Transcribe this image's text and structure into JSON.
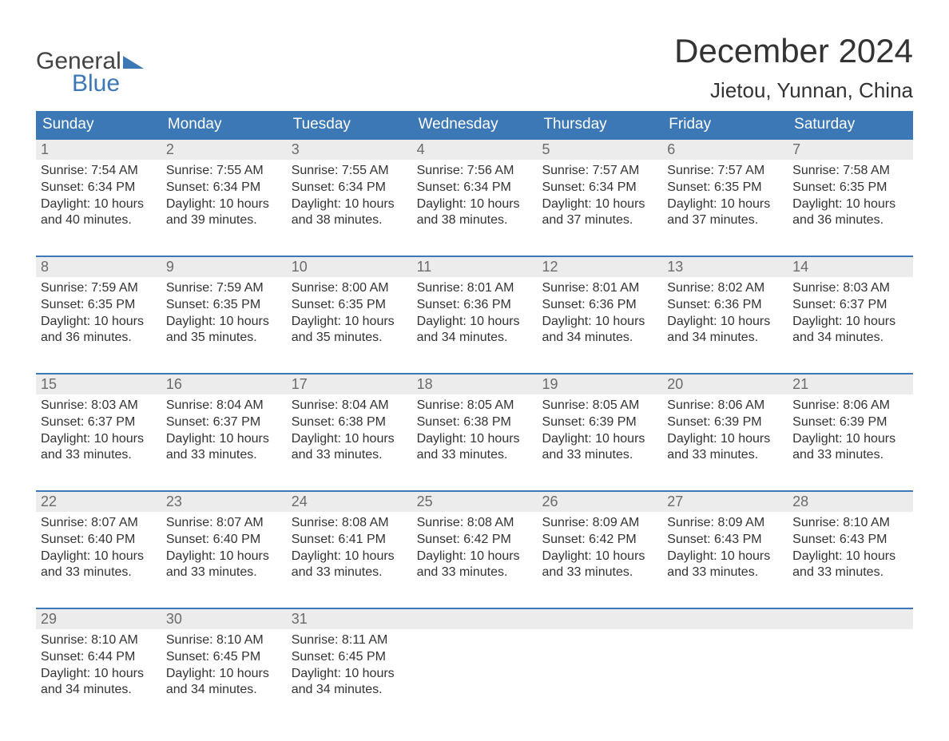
{
  "logo": {
    "word1": "General",
    "word2": "Blue"
  },
  "title": "December 2024",
  "location": "Jietou, Yunnan, China",
  "colors": {
    "header_bg": "#3b78b5",
    "header_text": "#ffffff",
    "daynum_bg": "#ececec",
    "daynum_text": "#6b6b6b",
    "body_text": "#333333",
    "logo_gray": "#444444",
    "logo_blue": "#3b78b5",
    "page_bg": "#ffffff"
  },
  "typography": {
    "title_fontsize": 42,
    "location_fontsize": 26,
    "dayheader_fontsize": 19,
    "daynum_fontsize": 18,
    "body_fontsize": 16,
    "logo_fontsize": 30
  },
  "layout": {
    "columns": 7,
    "rows": 5
  },
  "day_headers": [
    "Sunday",
    "Monday",
    "Tuesday",
    "Wednesday",
    "Thursday",
    "Friday",
    "Saturday"
  ],
  "weeks": [
    [
      {
        "n": "1",
        "sunrise": "Sunrise: 7:54 AM",
        "sunset": "Sunset: 6:34 PM",
        "d1": "Daylight: 10 hours",
        "d2": "and 40 minutes."
      },
      {
        "n": "2",
        "sunrise": "Sunrise: 7:55 AM",
        "sunset": "Sunset: 6:34 PM",
        "d1": "Daylight: 10 hours",
        "d2": "and 39 minutes."
      },
      {
        "n": "3",
        "sunrise": "Sunrise: 7:55 AM",
        "sunset": "Sunset: 6:34 PM",
        "d1": "Daylight: 10 hours",
        "d2": "and 38 minutes."
      },
      {
        "n": "4",
        "sunrise": "Sunrise: 7:56 AM",
        "sunset": "Sunset: 6:34 PM",
        "d1": "Daylight: 10 hours",
        "d2": "and 38 minutes."
      },
      {
        "n": "5",
        "sunrise": "Sunrise: 7:57 AM",
        "sunset": "Sunset: 6:34 PM",
        "d1": "Daylight: 10 hours",
        "d2": "and 37 minutes."
      },
      {
        "n": "6",
        "sunrise": "Sunrise: 7:57 AM",
        "sunset": "Sunset: 6:35 PM",
        "d1": "Daylight: 10 hours",
        "d2": "and 37 minutes."
      },
      {
        "n": "7",
        "sunrise": "Sunrise: 7:58 AM",
        "sunset": "Sunset: 6:35 PM",
        "d1": "Daylight: 10 hours",
        "d2": "and 36 minutes."
      }
    ],
    [
      {
        "n": "8",
        "sunrise": "Sunrise: 7:59 AM",
        "sunset": "Sunset: 6:35 PM",
        "d1": "Daylight: 10 hours",
        "d2": "and 36 minutes."
      },
      {
        "n": "9",
        "sunrise": "Sunrise: 7:59 AM",
        "sunset": "Sunset: 6:35 PM",
        "d1": "Daylight: 10 hours",
        "d2": "and 35 minutes."
      },
      {
        "n": "10",
        "sunrise": "Sunrise: 8:00 AM",
        "sunset": "Sunset: 6:35 PM",
        "d1": "Daylight: 10 hours",
        "d2": "and 35 minutes."
      },
      {
        "n": "11",
        "sunrise": "Sunrise: 8:01 AM",
        "sunset": "Sunset: 6:36 PM",
        "d1": "Daylight: 10 hours",
        "d2": "and 34 minutes."
      },
      {
        "n": "12",
        "sunrise": "Sunrise: 8:01 AM",
        "sunset": "Sunset: 6:36 PM",
        "d1": "Daylight: 10 hours",
        "d2": "and 34 minutes."
      },
      {
        "n": "13",
        "sunrise": "Sunrise: 8:02 AM",
        "sunset": "Sunset: 6:36 PM",
        "d1": "Daylight: 10 hours",
        "d2": "and 34 minutes."
      },
      {
        "n": "14",
        "sunrise": "Sunrise: 8:03 AM",
        "sunset": "Sunset: 6:37 PM",
        "d1": "Daylight: 10 hours",
        "d2": "and 34 minutes."
      }
    ],
    [
      {
        "n": "15",
        "sunrise": "Sunrise: 8:03 AM",
        "sunset": "Sunset: 6:37 PM",
        "d1": "Daylight: 10 hours",
        "d2": "and 33 minutes."
      },
      {
        "n": "16",
        "sunrise": "Sunrise: 8:04 AM",
        "sunset": "Sunset: 6:37 PM",
        "d1": "Daylight: 10 hours",
        "d2": "and 33 minutes."
      },
      {
        "n": "17",
        "sunrise": "Sunrise: 8:04 AM",
        "sunset": "Sunset: 6:38 PM",
        "d1": "Daylight: 10 hours",
        "d2": "and 33 minutes."
      },
      {
        "n": "18",
        "sunrise": "Sunrise: 8:05 AM",
        "sunset": "Sunset: 6:38 PM",
        "d1": "Daylight: 10 hours",
        "d2": "and 33 minutes."
      },
      {
        "n": "19",
        "sunrise": "Sunrise: 8:05 AM",
        "sunset": "Sunset: 6:39 PM",
        "d1": "Daylight: 10 hours",
        "d2": "and 33 minutes."
      },
      {
        "n": "20",
        "sunrise": "Sunrise: 8:06 AM",
        "sunset": "Sunset: 6:39 PM",
        "d1": "Daylight: 10 hours",
        "d2": "and 33 minutes."
      },
      {
        "n": "21",
        "sunrise": "Sunrise: 8:06 AM",
        "sunset": "Sunset: 6:39 PM",
        "d1": "Daylight: 10 hours",
        "d2": "and 33 minutes."
      }
    ],
    [
      {
        "n": "22",
        "sunrise": "Sunrise: 8:07 AM",
        "sunset": "Sunset: 6:40 PM",
        "d1": "Daylight: 10 hours",
        "d2": "and 33 minutes."
      },
      {
        "n": "23",
        "sunrise": "Sunrise: 8:07 AM",
        "sunset": "Sunset: 6:40 PM",
        "d1": "Daylight: 10 hours",
        "d2": "and 33 minutes."
      },
      {
        "n": "24",
        "sunrise": "Sunrise: 8:08 AM",
        "sunset": "Sunset: 6:41 PM",
        "d1": "Daylight: 10 hours",
        "d2": "and 33 minutes."
      },
      {
        "n": "25",
        "sunrise": "Sunrise: 8:08 AM",
        "sunset": "Sunset: 6:42 PM",
        "d1": "Daylight: 10 hours",
        "d2": "and 33 minutes."
      },
      {
        "n": "26",
        "sunrise": "Sunrise: 8:09 AM",
        "sunset": "Sunset: 6:42 PM",
        "d1": "Daylight: 10 hours",
        "d2": "and 33 minutes."
      },
      {
        "n": "27",
        "sunrise": "Sunrise: 8:09 AM",
        "sunset": "Sunset: 6:43 PM",
        "d1": "Daylight: 10 hours",
        "d2": "and 33 minutes."
      },
      {
        "n": "28",
        "sunrise": "Sunrise: 8:10 AM",
        "sunset": "Sunset: 6:43 PM",
        "d1": "Daylight: 10 hours",
        "d2": "and 33 minutes."
      }
    ],
    [
      {
        "n": "29",
        "sunrise": "Sunrise: 8:10 AM",
        "sunset": "Sunset: 6:44 PM",
        "d1": "Daylight: 10 hours",
        "d2": "and 34 minutes."
      },
      {
        "n": "30",
        "sunrise": "Sunrise: 8:10 AM",
        "sunset": "Sunset: 6:45 PM",
        "d1": "Daylight: 10 hours",
        "d2": "and 34 minutes."
      },
      {
        "n": "31",
        "sunrise": "Sunrise: 8:11 AM",
        "sunset": "Sunset: 6:45 PM",
        "d1": "Daylight: 10 hours",
        "d2": "and 34 minutes."
      },
      null,
      null,
      null,
      null
    ]
  ]
}
